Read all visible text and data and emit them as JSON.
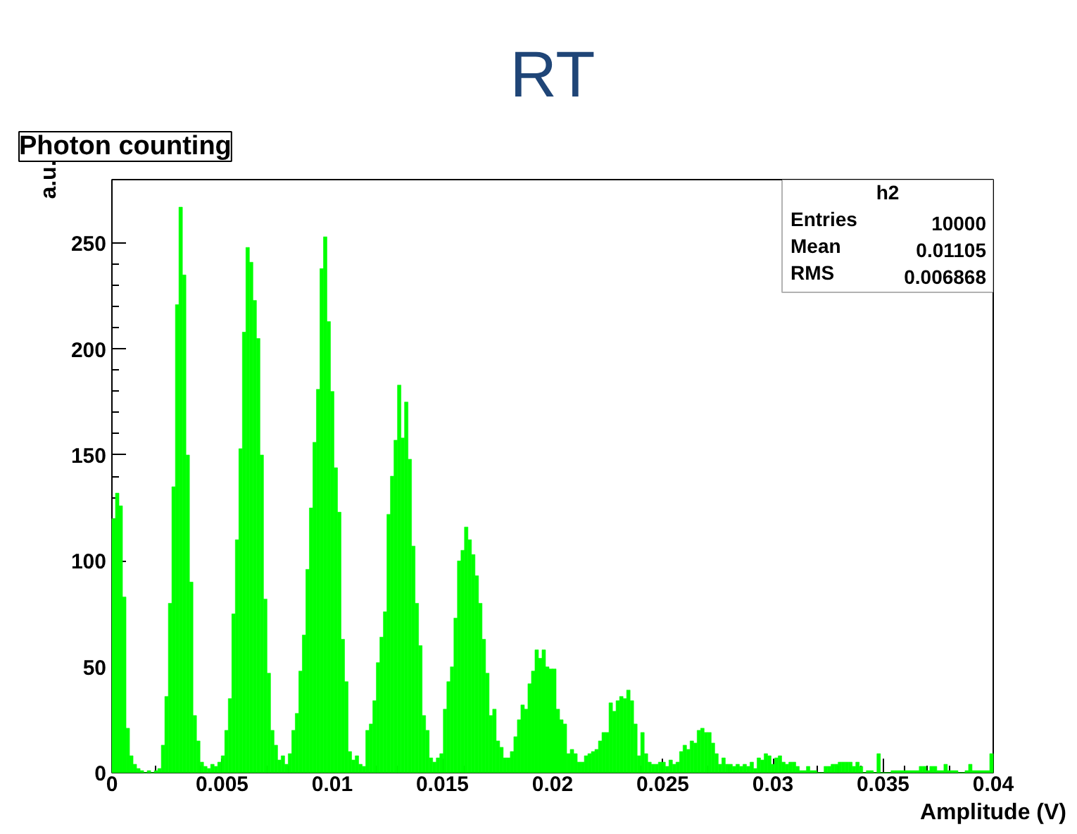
{
  "chart_data": {
    "type": "histogram",
    "title": "RT",
    "subtitle": "Photon counting",
    "xlabel": "Amplitude (V)",
    "ylabel": "a.u.",
    "annotations": [
      "h2",
      "Entries 10000",
      "Mean 0.01105",
      "RMS 0.006868"
    ],
    "color": "#00ff00",
    "bins": [
      0,
      0.00016,
      0.00032,
      0.00048,
      0.00064,
      0.0008,
      0.00096,
      0.00112,
      0.00128,
      0.00144,
      0.0016,
      0.00176,
      0.00192,
      0.00208,
      0.00224,
      0.0024,
      0.00256,
      0.00272,
      0.00288,
      0.00304,
      0.0032,
      0.00336,
      0.00352,
      0.00368,
      0.00384,
      0.004,
      0.00416,
      0.00432,
      0.00448,
      0.00464,
      0.0048,
      0.00496,
      0.00512,
      0.00528,
      0.00544,
      0.0056,
      0.00576,
      0.00592,
      0.00608,
      0.00624,
      0.0064,
      0.00656,
      0.00672,
      0.00688,
      0.00704,
      0.0072,
      0.00736,
      0.00752,
      0.00768,
      0.00784,
      0.008,
      0.00816,
      0.00832,
      0.00848,
      0.00864,
      0.0088,
      0.00896,
      0.00912,
      0.00928,
      0.00944,
      0.0096,
      0.00976,
      0.00992,
      0.01008,
      0.01024,
      0.0104,
      0.01056,
      0.01072,
      0.01088,
      0.01104,
      0.0112,
      0.01136,
      0.01152,
      0.01168,
      0.01184,
      0.012,
      0.01216,
      0.01232,
      0.01248,
      0.01264,
      0.0128,
      0.01296,
      0.01312,
      0.01328,
      0.01344,
      0.0136,
      0.01376,
      0.01392,
      0.01408,
      0.01424,
      0.0144,
      0.01456,
      0.01472,
      0.01488,
      0.01504,
      0.0152,
      0.01536,
      0.01552,
      0.01568,
      0.01584,
      0.016,
      0.01616,
      0.01632,
      0.01648,
      0.01664,
      0.0168,
      0.01696,
      0.01712,
      0.01728,
      0.01744,
      0.0176,
      0.01776,
      0.01792,
      0.01808,
      0.01824,
      0.0184,
      0.01856,
      0.01872,
      0.01888,
      0.01904,
      0.0192,
      0.01936,
      0.01952,
      0.01968,
      0.01984,
      0.02,
      0.02016,
      0.02032,
      0.02048,
      0.02064,
      0.0208,
      0.02096,
      0.02112,
      0.02128,
      0.02144,
      0.0216,
      0.02176,
      0.02192,
      0.02208,
      0.02224,
      0.0224,
      0.02256,
      0.02272,
      0.02288,
      0.02304,
      0.0232,
      0.02336,
      0.02352,
      0.02368,
      0.02384,
      0.024,
      0.02416,
      0.02432,
      0.02448,
      0.02464,
      0.0248,
      0.02496,
      0.02512,
      0.02528,
      0.02544,
      0.0256,
      0.02576,
      0.02592,
      0.02608,
      0.02624,
      0.0264,
      0.02656,
      0.02672,
      0.02688,
      0.02704,
      0.0272,
      0.02736,
      0.02752,
      0.02768,
      0.02784,
      0.028,
      0.02816,
      0.02832,
      0.02848,
      0.02864,
      0.0288,
      0.02896,
      0.02912,
      0.02928,
      0.02944,
      0.0296,
      0.02976,
      0.02992,
      0.03008,
      0.03024,
      0.0304,
      0.03056,
      0.03072,
      0.03088,
      0.03104,
      0.0312,
      0.03136,
      0.03152,
      0.03168,
      0.03184,
      0.032,
      0.03216,
      0.03232,
      0.03248,
      0.03264,
      0.0328,
      0.03296,
      0.03312,
      0.03328,
      0.03344,
      0.0336,
      0.03376,
      0.03392,
      0.03408,
      0.03424,
      0.0344,
      0.03456,
      0.03472,
      0.03488,
      0.03504,
      0.0352,
      0.03536,
      0.03552,
      0.03568,
      0.03584,
      0.036,
      0.03616,
      0.03632,
      0.03648,
      0.03664,
      0.0368,
      0.03696,
      0.03712,
      0.03728,
      0.03744,
      0.0376,
      0.03776,
      0.03792,
      0.03808,
      0.03824,
      0.0384,
      0.03856,
      0.03872,
      0.03888,
      0.03904,
      0.0392,
      0.03936,
      0.03952,
      0.03968,
      0.03984,
      0.04
    ],
    "values": [
      120,
      132,
      126,
      83,
      21,
      8,
      4,
      2,
      1,
      0,
      1,
      0,
      1,
      2,
      13,
      36,
      80,
      135,
      221,
      267,
      235,
      150,
      90,
      27,
      15,
      5,
      3,
      2,
      4,
      3,
      5,
      8,
      20,
      35,
      75,
      110,
      153,
      208,
      248,
      241,
      223,
      205,
      150,
      82,
      47,
      20,
      13,
      6,
      8,
      4,
      9,
      20,
      28,
      48,
      65,
      96,
      125,
      156,
      181,
      238,
      253,
      213,
      180,
      144,
      123,
      63,
      43,
      10,
      6,
      8,
      4,
      3,
      20,
      23,
      34,
      52,
      64,
      76,
      122,
      140,
      157,
      183,
      158,
      175,
      148,
      107,
      80,
      60,
      27,
      20,
      7,
      5,
      7,
      9,
      30,
      43,
      50,
      73,
      100,
      105,
      116,
      110,
      103,
      93,
      80,
      63,
      47,
      27,
      30,
      15,
      12,
      7,
      7,
      10,
      17,
      25,
      32,
      30,
      42,
      48,
      58,
      54,
      58,
      50,
      49,
      49,
      30,
      25,
      23,
      9,
      11,
      9,
      5,
      5,
      8,
      9,
      10,
      11,
      15,
      19,
      19,
      33,
      29,
      34,
      36,
      35,
      39,
      34,
      23,
      8,
      19,
      9,
      5,
      4,
      4,
      5,
      5,
      3,
      6,
      4,
      5,
      10,
      13,
      11,
      15,
      14,
      20,
      21,
      19,
      19,
      14,
      9,
      4,
      7,
      4,
      4,
      3,
      4,
      3,
      4,
      3,
      5,
      2,
      7,
      6,
      9,
      8,
      4,
      7,
      8,
      5,
      4,
      5,
      5,
      3,
      1,
      1,
      3,
      1,
      1,
      0,
      0,
      3,
      3,
      4,
      4,
      5,
      5,
      5,
      5,
      3,
      5,
      3,
      0,
      1,
      1,
      0,
      9,
      0,
      0,
      0,
      1,
      1,
      1,
      1,
      1,
      1,
      1,
      1,
      3,
      3,
      1,
      3,
      3,
      1,
      1,
      4,
      1,
      1,
      1,
      0,
      0,
      1,
      4,
      1,
      1,
      1,
      1,
      1,
      9
    ],
    "xlim": [
      0,
      0.04
    ],
    "ylim": [
      0,
      280
    ],
    "xticks": [
      0,
      0.005,
      0.01,
      0.015,
      0.02,
      0.025,
      0.03,
      0.035,
      0.04
    ],
    "yticks": [
      0,
      50,
      100,
      150,
      200,
      250
    ],
    "grid": false
  }
}
